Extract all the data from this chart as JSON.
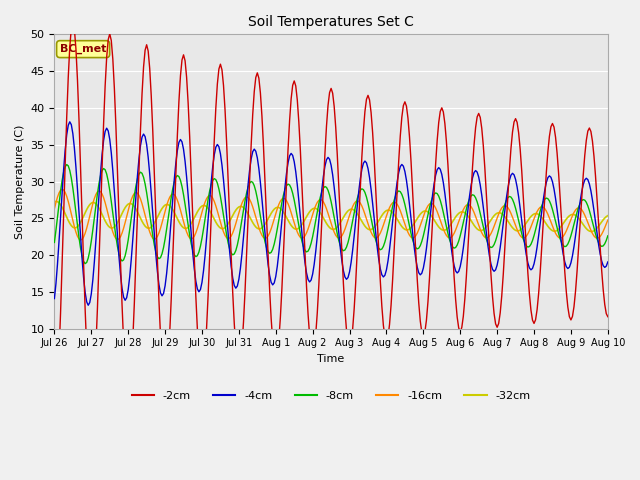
{
  "title": "Soil Temperatures Set C",
  "xlabel": "Time",
  "ylabel": "Soil Temperature (C)",
  "annotation": "BC_met",
  "ylim": [
    10,
    50
  ],
  "yticks": [
    10,
    15,
    20,
    25,
    30,
    35,
    40,
    45,
    50
  ],
  "xtick_labels": [
    "Jul 26",
    "Jul 27",
    "Jul 28",
    "Jul 29",
    "Jul 30",
    "Jul 31",
    "Aug 1",
    "Aug 2",
    "Aug 3",
    "Aug 4",
    "Aug 5",
    "Aug 6",
    "Aug 7",
    "Aug 8",
    "Aug 9",
    "Aug 10"
  ],
  "colors": {
    "-2cm": "#cc0000",
    "-4cm": "#0000cc",
    "-8cm": "#00bb00",
    "-16cm": "#ff8800",
    "-32cm": "#cccc00"
  },
  "fig_facecolor": "#f0f0f0",
  "ax_facecolor": "#e8e8e8",
  "grid_color": "#ffffff",
  "figsize": [
    6.4,
    4.8
  ],
  "dpi": 100
}
